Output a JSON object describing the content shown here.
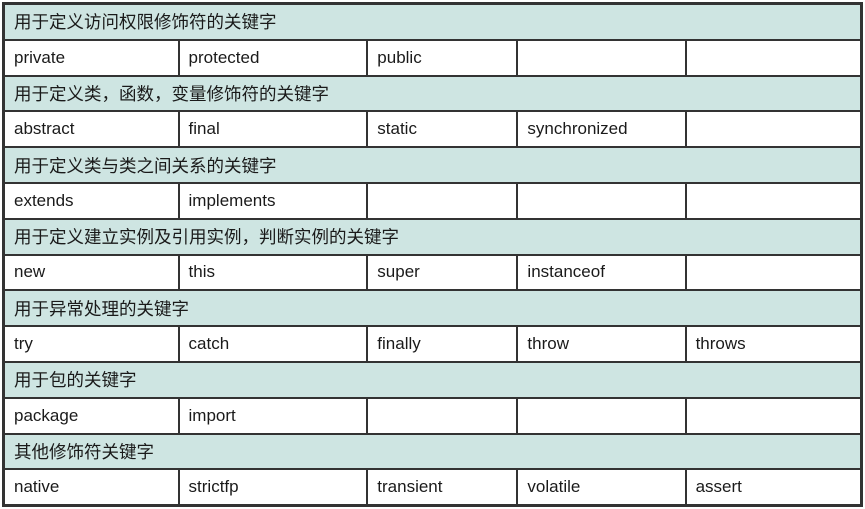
{
  "table": {
    "columns": 5,
    "sections": [
      {
        "header": "用于定义访问权限修饰符的关键字",
        "keywords": [
          "private",
          "protected",
          "public",
          "",
          ""
        ]
      },
      {
        "header": "用于定义类，函数，变量修饰符的关键字",
        "keywords": [
          "abstract",
          "final",
          "static",
          "synchronized",
          ""
        ]
      },
      {
        "header": "用于定义类与类之间关系的关键字",
        "keywords": [
          "extends",
          "implements",
          "",
          "",
          ""
        ]
      },
      {
        "header": "用于定义建立实例及引用实例，判断实例的关键字",
        "keywords": [
          "new",
          "this",
          "super",
          "instanceof",
          ""
        ]
      },
      {
        "header": "用于异常处理的关键字",
        "keywords": [
          "try",
          "catch",
          "finally",
          "throw",
          "throws"
        ]
      },
      {
        "header": "用于包的关键字",
        "keywords": [
          "package",
          "import",
          "",
          "",
          ""
        ]
      },
      {
        "header": "其他修饰符关键字",
        "keywords": [
          "native",
          "strictfp",
          "transient",
          "volatile",
          "assert"
        ]
      }
    ]
  },
  "colors": {
    "header_bg": "#cee5e2",
    "cell_bg": "#ffffff",
    "border": "#333333",
    "text": "#1a1a1a"
  }
}
